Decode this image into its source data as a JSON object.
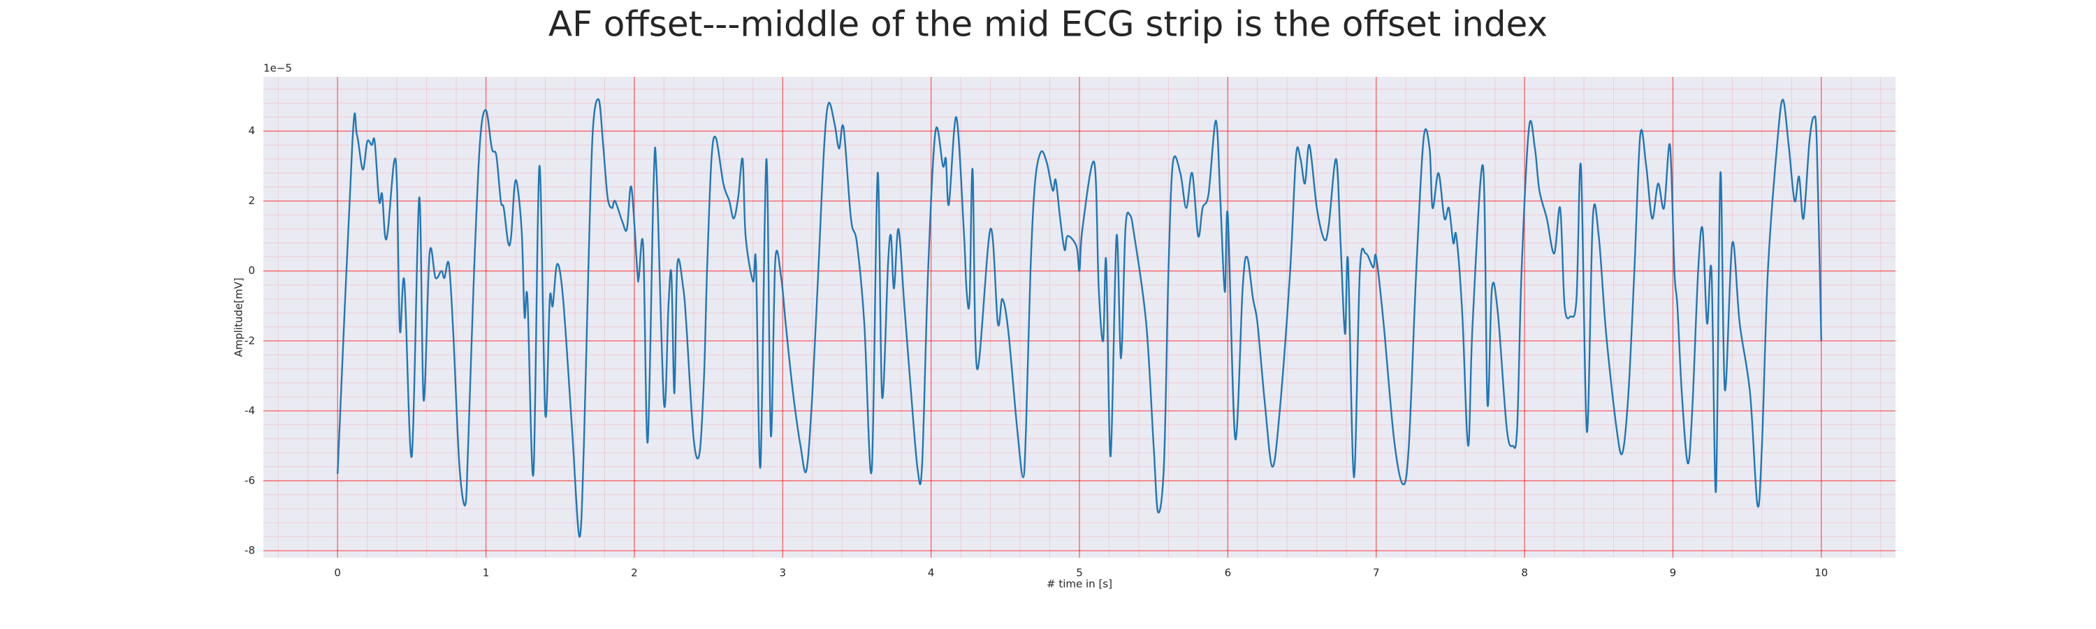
{
  "chart_data": {
    "type": "line",
    "title": "AF offset---middle of the mid ECG strip is the offset index",
    "x_label": "# time in [s]",
    "y_label": "Amplitude[mV]",
    "y_offset_label": "1e−5",
    "xlim": [
      -0.5,
      10.5
    ],
    "ylim": [
      -8.2,
      5.55
    ],
    "xticks": [
      0,
      1,
      2,
      3,
      4,
      5,
      6,
      7,
      8,
      9,
      10
    ],
    "yticks": [
      -8,
      -6,
      -4,
      -2,
      0,
      2,
      4
    ],
    "grid": true,
    "minor_grid": true,
    "grid_color": "#ff0000",
    "series": [
      {
        "color": "#1f77b4",
        "x": [
          0,
          0.1,
          0.13,
          0.17,
          0.2,
          0.23,
          0.25,
          0.28,
          0.3,
          0.32,
          0.34,
          0.38,
          0.4,
          0.42,
          0.45,
          0.5,
          0.55,
          0.58,
          0.62,
          0.66,
          0.7,
          0.72,
          0.75,
          0.78,
          0.82,
          0.86,
          0.88,
          0.92,
          0.96,
          1.0,
          1.04,
          1.07,
          1.1,
          1.12,
          1.15,
          1.17,
          1.2,
          1.24,
          1.26,
          1.28,
          1.32,
          1.36,
          1.4,
          1.43,
          1.45,
          1.48,
          1.52,
          1.58,
          1.63,
          1.66,
          1.69,
          1.72,
          1.76,
          1.79,
          1.82,
          1.85,
          1.87,
          1.92,
          1.95,
          1.98,
          2.02,
          2.03,
          2.06,
          2.09,
          2.13,
          2.15,
          2.2,
          2.23,
          2.25,
          2.27,
          2.29,
          2.33,
          2.35,
          2.4,
          2.44,
          2.47,
          2.49,
          2.52,
          2.55,
          2.6,
          2.64,
          2.67,
          2.7,
          2.73,
          2.75,
          2.8,
          2.82,
          2.85,
          2.89,
          2.92,
          2.95,
          2.99,
          3.02,
          3.07,
          3.12,
          3.16,
          3.2,
          3.24,
          3.28,
          3.31,
          3.35,
          3.38,
          3.41,
          3.46,
          3.5,
          3.55,
          3.6,
          3.64,
          3.67,
          3.71,
          3.73,
          3.75,
          3.78,
          3.82,
          3.86,
          3.91,
          3.94,
          3.98,
          4.03,
          4.08,
          4.1,
          4.12,
          4.17,
          4.22,
          4.24,
          4.26,
          4.28,
          4.31,
          4.4,
          4.45,
          4.48,
          4.52,
          4.58,
          4.62,
          4.64,
          4.67,
          4.7,
          4.74,
          4.78,
          4.82,
          4.84,
          4.87,
          4.9,
          4.92,
          4.98,
          5.0,
          5.02,
          5.1,
          5.13,
          5.16,
          5.18,
          5.21,
          5.25,
          5.28,
          5.31,
          5.34,
          5.37,
          5.45,
          5.5,
          5.53,
          5.57,
          5.6,
          5.63,
          5.68,
          5.72,
          5.76,
          5.8,
          5.83,
          5.87,
          5.92,
          5.95,
          5.98,
          6.0,
          6.05,
          6.1,
          6.13,
          6.17,
          6.2,
          6.25,
          6.3,
          6.35,
          6.42,
          6.46,
          6.49,
          6.52,
          6.55,
          6.6,
          6.65,
          6.68,
          6.73,
          6.76,
          6.79,
          6.81,
          6.85,
          6.89,
          6.93,
          6.98,
          7.0,
          7.05,
          7.12,
          7.18,
          7.22,
          7.27,
          7.32,
          7.36,
          7.38,
          7.42,
          7.46,
          7.49,
          7.52,
          7.54,
          7.58,
          7.62,
          7.65,
          7.72,
          7.75,
          7.78,
          7.82,
          7.88,
          7.92,
          7.95,
          7.98,
          8.03,
          8.07,
          8.1,
          8.15,
          8.2,
          8.24,
          8.27,
          8.31,
          8.35,
          8.38,
          8.42,
          8.46,
          8.5,
          8.55,
          8.62,
          8.66,
          8.7,
          8.74,
          8.78,
          8.82,
          8.86,
          8.9,
          8.94,
          8.98,
          9.01,
          9.03,
          9.06,
          9.1,
          9.13,
          9.17,
          9.2,
          9.23,
          9.26,
          9.29,
          9.32,
          9.35,
          9.4,
          9.45,
          9.52,
          9.57,
          9.6,
          9.64,
          9.7,
          9.74,
          9.78,
          9.82,
          9.85,
          9.88,
          9.92,
          9.95,
          9.97,
          10.0
        ],
        "values": [
          -5.8,
          3.7,
          3.9,
          2.9,
          3.7,
          3.6,
          3.7,
          2.0,
          2.2,
          1.0,
          1.2,
          3.1,
          2.5,
          -1.7,
          -0.3,
          -5.3,
          2.1,
          -3.7,
          0.5,
          -0.2,
          0,
          -0.2,
          0.2,
          -1.8,
          -5.5,
          -6.7,
          -5.0,
          0,
          3.7,
          4.6,
          3.5,
          3.3,
          2.0,
          1.8,
          0.8,
          1.0,
          2.6,
          1.2,
          -1.3,
          -0.8,
          -5.8,
          3.0,
          -4.1,
          -0.8,
          -1.0,
          0.2,
          -0.8,
          -4.5,
          -7.6,
          -5.0,
          0,
          4.0,
          4.9,
          3.6,
          2.1,
          1.8,
          2.0,
          1.4,
          1.2,
          2.4,
          0,
          -0.2,
          0.7,
          -4.9,
          2.5,
          2.8,
          -3.8,
          -1.0,
          -0.1,
          -3.5,
          0.2,
          -0.5,
          -1.5,
          -4.8,
          -5.2,
          -3.0,
          0,
          3.2,
          3.8,
          2.5,
          2.0,
          1.5,
          2.1,
          3.2,
          1.0,
          -0.3,
          0.2,
          -5.6,
          3.2,
          -4.7,
          0.3,
          -0.2,
          -1.5,
          -3.5,
          -5.0,
          -5.7,
          -3.5,
          0,
          3.6,
          4.8,
          4.2,
          3.5,
          4.1,
          1.5,
          0.8,
          -1.5,
          -5.7,
          2.8,
          -3.6,
          0.2,
          1.0,
          -0.5,
          1.2,
          -1.0,
          -3.2,
          -5.7,
          -5.5,
          0,
          4.0,
          3.0,
          3.2,
          1.9,
          4.4,
          1.2,
          -0.6,
          -0.8,
          2.9,
          -2.8,
          1.2,
          -1.5,
          -0.8,
          -1.7,
          -4.5,
          -5.9,
          -4.5,
          0,
          2.5,
          3.4,
          3.1,
          2.3,
          2.6,
          1.5,
          0.6,
          1.0,
          0.7,
          0,
          1.2,
          3.1,
          -0.5,
          -2.0,
          0.3,
          -5.3,
          1.0,
          -2.5,
          1.2,
          1.6,
          1.0,
          -1.5,
          -5.0,
          -6.9,
          -5.5,
          0,
          3.1,
          2.8,
          1.8,
          2.8,
          1.0,
          1.8,
          2.2,
          4.3,
          2.0,
          -0.6,
          1.6,
          -4.8,
          -0.5,
          0.4,
          -0.8,
          -1.5,
          -3.8,
          -5.6,
          -4.0,
          0,
          3.3,
          3.2,
          2.5,
          3.6,
          1.8,
          0.9,
          1.3,
          3.2,
          0.8,
          -1.8,
          0.3,
          -5.9,
          0,
          0.5,
          0.1,
          0.4,
          -1.5,
          -4.8,
          -6.1,
          -5.0,
          0,
          3.8,
          3.5,
          1.8,
          2.8,
          1.5,
          1.8,
          0.8,
          1.0,
          -1.2,
          -5.0,
          -1.5,
          3.0,
          -3.8,
          -0.5,
          -1.2,
          -4.5,
          -5.0,
          -4.5,
          0,
          4.1,
          3.5,
          2.3,
          1.5,
          0.5,
          1.8,
          -1.0,
          -1.3,
          -0.8,
          3.0,
          -4.6,
          1.5,
          1.0,
          -1.8,
          -4.5,
          -5.2,
          -3.5,
          0,
          3.9,
          3.0,
          1.5,
          2.5,
          1.8,
          3.6,
          0,
          -1.0,
          -3.5,
          -5.5,
          -4.0,
          0,
          1.2,
          -1.5,
          0,
          -6.3,
          2.8,
          -3.4,
          0.8,
          -1.5,
          -3.5,
          -6.7,
          -5.0,
          0,
          3.5,
          4.9,
          3.6,
          2.0,
          2.7,
          1.5,
          3.7,
          4.4,
          3.6,
          -2.0
        ]
      }
    ]
  }
}
